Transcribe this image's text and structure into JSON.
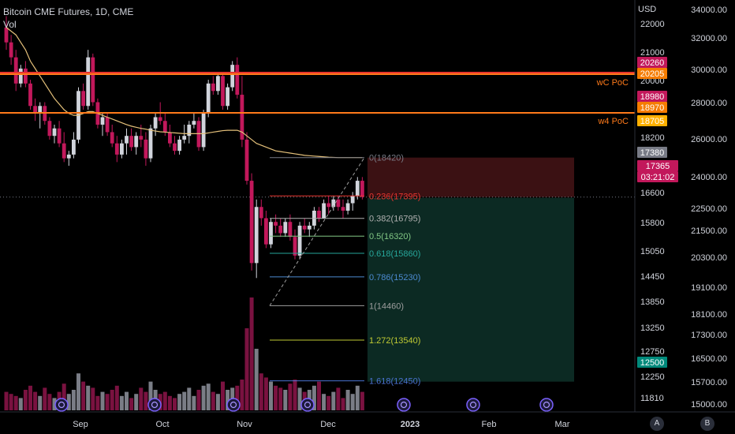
{
  "header": {
    "title": "Bitcoin CME Futures, 1D, CME",
    "volume_label": "Vol"
  },
  "axes": {
    "currency": "USD",
    "left_price_ticks": [
      "22000",
      "21000",
      "20000",
      "19000",
      "18200",
      "17380",
      "16600",
      "15800",
      "15050",
      "14450",
      "13850",
      "13250",
      "12750",
      "12250",
      "11810"
    ],
    "right_price_ticks": [
      "34000.00",
      "32000.00",
      "30000.00",
      "28000.00",
      "26000.00",
      "24000.00",
      "22500.00",
      "21500.00",
      "20300.00",
      "19100.00",
      "18100.00",
      "17300.00",
      "16500.00",
      "15700.00",
      "15000.00"
    ],
    "time_ticks": [
      "Sep",
      "Oct",
      "Nov",
      "Dec",
      "2023",
      "Feb",
      "Mar"
    ],
    "scale_buttons": [
      "A",
      "B"
    ]
  },
  "price_badges": {
    "b20260": "20260",
    "b20205": "20205",
    "b18980": "18980",
    "b18970": "18970",
    "b18705": "18705",
    "b17380": "17380",
    "b17365": "17365",
    "countdown": "03:21:02",
    "b12500": "12500"
  },
  "levels": {
    "wc_poc": "wC PoC",
    "w4_poc": "w4 PoC"
  },
  "fib": [
    "0(18420)",
    "0.236(17395)",
    "0.382(16795)",
    "0.5(16320)",
    "0.618(15860)",
    "0.786(15230)",
    "1(14460)",
    "1.272(13540)",
    "1.618(12450)"
  ],
  "colors": {
    "bull": "#d1d4dc",
    "bear": "#c2185b",
    "ma": "#e4c07a",
    "poc": "#ff7a1a",
    "fib_up": "#e8352f",
    "fib_down": "#1f9e85",
    "badge_pink": "#c2185b",
    "badge_orange": "#f57c00",
    "badge_teal": "#00897b"
  },
  "icons": [
    "event-icon",
    "event-icon",
    "event-icon",
    "event-icon",
    "event-icon",
    "event-icon",
    "event-icon"
  ],
  "chart_data": {
    "type": "candlestick",
    "title": "Bitcoin CME Futures, 1D, CME",
    "y_unit": "USD",
    "ylim": [
      11500,
      22500
    ],
    "ohlc": [
      [
        21900,
        22200,
        21300,
        21500
      ],
      [
        21500,
        21700,
        20900,
        21100
      ],
      [
        21100,
        21300,
        20200,
        20400
      ],
      [
        20400,
        20900,
        20300,
        20800
      ],
      [
        20800,
        21000,
        20300,
        20400
      ],
      [
        20400,
        20500,
        19700,
        19800
      ],
      [
        19800,
        20000,
        19400,
        19600
      ],
      [
        19600,
        19900,
        19200,
        19800
      ],
      [
        19800,
        19900,
        19300,
        19400
      ],
      [
        19400,
        19500,
        18900,
        19000
      ],
      [
        19000,
        19300,
        18800,
        19200
      ],
      [
        19200,
        19400,
        18700,
        18800
      ],
      [
        18800,
        19100,
        18300,
        18400
      ],
      [
        18400,
        18600,
        18200,
        18500
      ],
      [
        18500,
        19100,
        18400,
        18900
      ],
      [
        18900,
        20300,
        18800,
        20200
      ],
      [
        20200,
        20400,
        19700,
        19800
      ],
      [
        19800,
        21300,
        19700,
        21100
      ],
      [
        21100,
        21200,
        19800,
        19900
      ],
      [
        19900,
        20000,
        19200,
        19300
      ],
      [
        19300,
        19600,
        19000,
        19500
      ],
      [
        19500,
        19600,
        19000,
        19100
      ],
      [
        19100,
        19300,
        18700,
        18800
      ],
      [
        18800,
        19000,
        18300,
        18500
      ],
      [
        18500,
        18900,
        18400,
        18800
      ],
      [
        18800,
        19200,
        18500,
        19000
      ],
      [
        19000,
        19200,
        18600,
        18700
      ],
      [
        18700,
        19100,
        18500,
        19000
      ],
      [
        19000,
        19300,
        18700,
        18900
      ],
      [
        18900,
        19100,
        18200,
        18400
      ],
      [
        18400,
        19300,
        18300,
        19200
      ],
      [
        19200,
        19600,
        19000,
        19500
      ],
      [
        19500,
        19900,
        19300,
        19400
      ],
      [
        19400,
        19600,
        19000,
        19100
      ],
      [
        19100,
        19300,
        18700,
        18800
      ],
      [
        18800,
        19000,
        18500,
        18600
      ],
      [
        18600,
        19000,
        18500,
        18900
      ],
      [
        18900,
        19300,
        18800,
        19000
      ],
      [
        19000,
        19400,
        18800,
        19300
      ],
      [
        19300,
        19600,
        19200,
        19400
      ],
      [
        19400,
        19500,
        18600,
        18700
      ],
      [
        18700,
        19700,
        18600,
        19600
      ],
      [
        19600,
        20500,
        19500,
        20400
      ],
      [
        20400,
        20600,
        20100,
        20200
      ],
      [
        20200,
        20700,
        20100,
        20600
      ],
      [
        20600,
        20700,
        19700,
        19800
      ],
      [
        19800,
        20400,
        19700,
        20300
      ],
      [
        20300,
        21000,
        20200,
        20900
      ],
      [
        20900,
        21100,
        20000,
        20100
      ],
      [
        20100,
        20600,
        18700,
        18900
      ],
      [
        18900,
        19100,
        17700,
        17800
      ],
      [
        17800,
        18000,
        15400,
        15600
      ],
      [
        15600,
        17300,
        15200,
        17100
      ],
      [
        17100,
        17300,
        16600,
        16800
      ],
      [
        16800,
        17000,
        16000,
        16100
      ],
      [
        16100,
        16800,
        16000,
        16700
      ],
      [
        16700,
        16900,
        16400,
        16600
      ],
      [
        16600,
        16800,
        16300,
        16400
      ],
      [
        16400,
        16800,
        16300,
        16700
      ],
      [
        16700,
        16900,
        16200,
        16300
      ],
      [
        16300,
        16500,
        15700,
        15800
      ],
      [
        15800,
        16700,
        15700,
        16600
      ],
      [
        16600,
        16800,
        16400,
        16500
      ],
      [
        16500,
        16700,
        16300,
        16600
      ],
      [
        16600,
        17100,
        16500,
        17000
      ],
      [
        17000,
        17100,
        16700,
        16800
      ],
      [
        16800,
        17300,
        16800,
        17200
      ],
      [
        17200,
        17400,
        16900,
        17100
      ],
      [
        17100,
        17400,
        17000,
        17300
      ],
      [
        17300,
        17400,
        17000,
        17100
      ],
      [
        17100,
        17300,
        16800,
        17000
      ],
      [
        17000,
        17300,
        16900,
        17200
      ],
      [
        17200,
        17500,
        17000,
        17400
      ],
      [
        17400,
        17900,
        17300,
        17800
      ],
      [
        17800,
        17900,
        17300,
        17365
      ]
    ],
    "volume": [
      9,
      8,
      7,
      6,
      10,
      12,
      9,
      7,
      11,
      8,
      6,
      9,
      13,
      8,
      10,
      18,
      14,
      12,
      11,
      7,
      9,
      8,
      10,
      12,
      7,
      9,
      6,
      8,
      11,
      9,
      14,
      10,
      8,
      9,
      7,
      6,
      8,
      9,
      11,
      7,
      10,
      12,
      13,
      9,
      8,
      14,
      10,
      11,
      12,
      15,
      40,
      55,
      30,
      18,
      16,
      14,
      12,
      11,
      10,
      13,
      15,
      11,
      9,
      10,
      12,
      14,
      8,
      7,
      9,
      11,
      6,
      10,
      8,
      12,
      9
    ],
    "ma": [
      21900,
      21800,
      21700,
      21500,
      21300,
      21000,
      20800,
      20600,
      20400,
      20200,
      20000,
      19850,
      19700,
      19600,
      19550,
      19550,
      19600,
      19650,
      19650,
      19600,
      19550,
      19500,
      19450,
      19400,
      19350,
      19300,
      19260,
      19230,
      19200,
      19180,
      19150,
      19130,
      19110,
      19100,
      19090,
      19080,
      19070,
      19060,
      19060,
      19060,
      19060,
      19060,
      19080,
      19100,
      19120,
      19140,
      19150,
      19150,
      19150,
      19100,
      19000,
      18900,
      18800,
      18750,
      18700,
      18650,
      18600,
      18580,
      18560,
      18540,
      18520,
      18500,
      18480,
      18470,
      18460,
      18450,
      18440,
      18430,
      18425,
      18420,
      18420,
      18420,
      18420,
      18420,
      18420
    ],
    "levels": [
      {
        "name": "wC PoC",
        "price": 20235
      },
      {
        "name": "w4 PoC",
        "price": 18975
      }
    ],
    "fib_retracement": {
      "0": 18420,
      "0.236": 17395,
      "0.382": 16795,
      "0.5": 16320,
      "0.618": 15860,
      "0.786": 15230,
      "1": 14460,
      "1.272": 13540,
      "1.618": 12450
    },
    "last_price": 17365,
    "x_labels": [
      "Sep",
      "Oct",
      "Nov",
      "Dec",
      "2023",
      "Feb",
      "Mar"
    ]
  }
}
